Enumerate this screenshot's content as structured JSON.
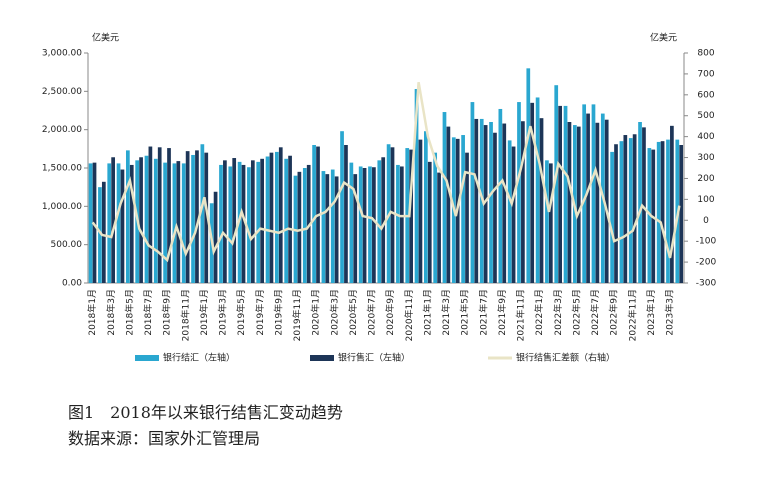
{
  "chart_data": {
    "type": "bar-line",
    "title": "图1　2018年以来银行结售汇变动趋势",
    "source": "数据来源：国家外汇管理局",
    "y_unit": "亿美元",
    "y2_unit": "亿美元",
    "categories": [
      "2018年1月",
      null,
      "2018年3月",
      null,
      "2018年5月",
      null,
      "2018年7月",
      null,
      "2018年9月",
      null,
      "2018年11月",
      null,
      "2019年1月",
      null,
      "2019年3月",
      null,
      "2019年5月",
      null,
      "2019年7月",
      null,
      "2019年9月",
      null,
      "2019年11月",
      null,
      "2020年1月",
      null,
      "2020年3月",
      null,
      "2020年5月",
      null,
      "2020年7月",
      null,
      "2020年9月",
      null,
      "2020年11月",
      null,
      "2021年1月",
      null,
      "2021年3月",
      null,
      "2021年5月",
      null,
      "2021年7月",
      null,
      "2021年9月",
      null,
      "2021年11月",
      null,
      "2022年1月",
      null,
      "2022年3月",
      null,
      "2022年5月",
      null,
      "2022年7月",
      null,
      "2022年9月",
      null,
      "2022年11月",
      null,
      "2023年1月",
      null,
      "2023年3月",
      null
    ],
    "series": [
      {
        "name": "银行结汇（左轴）",
        "color": "#2aa7d0",
        "kind": "bar",
        "values": [
          1560,
          1250,
          1560,
          1560,
          1730,
          1600,
          1660,
          1620,
          1570,
          1560,
          1560,
          1670,
          1810,
          1040,
          1540,
          1520,
          1580,
          1510,
          1580,
          1650,
          1710,
          1620,
          1400,
          1500,
          1800,
          1460,
          1480,
          1980,
          1570,
          1520,
          1520,
          1600,
          1810,
          1540,
          1760,
          2530,
          1980,
          1700,
          2230,
          1900,
          1930,
          2360,
          2140,
          2100,
          2270,
          1860,
          2360,
          2800,
          2420,
          1600,
          2580,
          2310,
          2060,
          2330,
          2330,
          2210,
          1710,
          1850,
          1890,
          2100,
          1760,
          1840,
          1870,
          1870
        ]
      },
      {
        "name": "银行售汇（左轴）",
        "color": "#1d3557",
        "kind": "bar",
        "values": [
          1570,
          1320,
          1640,
          1480,
          1540,
          1640,
          1780,
          1770,
          1760,
          1590,
          1720,
          1730,
          1700,
          1190,
          1600,
          1630,
          1540,
          1600,
          1620,
          1700,
          1770,
          1660,
          1450,
          1540,
          1780,
          1420,
          1390,
          1800,
          1420,
          1500,
          1510,
          1640,
          1770,
          1520,
          1740,
          1870,
          1580,
          1440,
          2040,
          1880,
          1700,
          2140,
          2060,
          1960,
          2080,
          1780,
          2110,
          2350,
          2150,
          1560,
          2310,
          2100,
          2040,
          2210,
          2090,
          2130,
          1810,
          1930,
          1940,
          2030,
          1740,
          1850,
          2050,
          1800
        ]
      },
      {
        "name": "银行结售汇差额（右轴）",
        "color": "#e9e4c6",
        "kind": "line",
        "axis": "y2",
        "values": [
          -10,
          -70,
          -80,
          80,
          190,
          -40,
          -120,
          -150,
          -190,
          -30,
          -160,
          -60,
          110,
          -150,
          -60,
          -110,
          40,
          -90,
          -40,
          -50,
          -60,
          -40,
          -50,
          -40,
          20,
          40,
          90,
          180,
          150,
          20,
          10,
          -40,
          40,
          20,
          20,
          660,
          400,
          260,
          190,
          20,
          230,
          220,
          80,
          140,
          190,
          80,
          250,
          450,
          270,
          40,
          270,
          210,
          20,
          120,
          240,
          80,
          -100,
          -80,
          -50,
          70,
          20,
          -10,
          -180,
          70
        ]
      }
    ],
    "ylim": [
      0,
      3000
    ],
    "yticks": [
      {
        "value": 0,
        "label": "0.00"
      },
      {
        "value": 500,
        "label": "500.00"
      },
      {
        "value": 1000,
        "label": "1,000.00"
      },
      {
        "value": 1500,
        "label": "1,500.00"
      },
      {
        "value": 2000,
        "label": "2,000.00"
      },
      {
        "value": 2500,
        "label": "2,500.00"
      },
      {
        "value": 3000,
        "label": "3,000.00"
      }
    ],
    "y2lim": [
      -300,
      800
    ],
    "y2ticks": [
      -300,
      -200,
      -100,
      0,
      100,
      200,
      300,
      400,
      500,
      600,
      700,
      800
    ]
  }
}
